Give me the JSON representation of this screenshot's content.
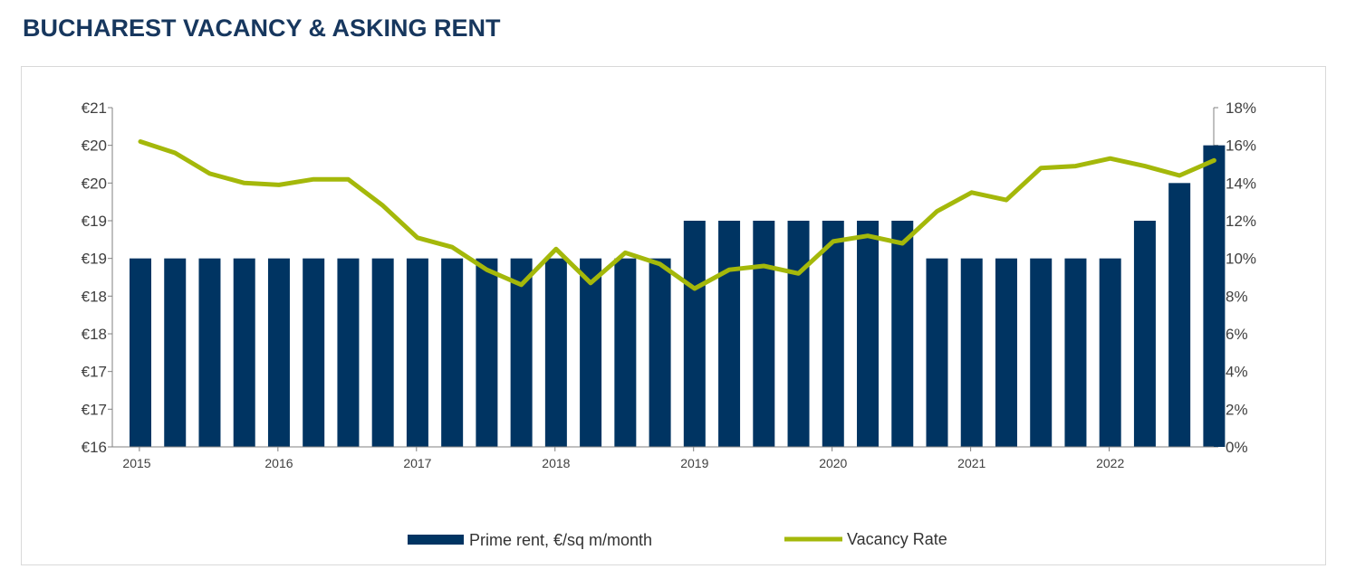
{
  "title": "BUCHAREST VACANCY & ASKING RENT",
  "chart_data": {
    "type": "bar+line",
    "title": "BUCHAREST VACANCY & ASKING RENT",
    "colors": {
      "bars": "#003462",
      "line": "#a4b80a"
    },
    "y_left": {
      "range": [
        16,
        20.5
      ],
      "tick_labels": [
        "€16",
        "€17",
        "€17",
        "€18",
        "€18",
        "€19",
        "€19",
        "€20",
        "€20",
        "€21"
      ]
    },
    "y_right": {
      "range": [
        0,
        18
      ],
      "tick_labels": [
        "0%",
        "2%",
        "4%",
        "6%",
        "8%",
        "10%",
        "12%",
        "14%",
        "16%",
        "18%"
      ]
    },
    "x_tick_labels": [
      "2015",
      "2016",
      "2017",
      "2018",
      "2019",
      "2020",
      "2021",
      "2022"
    ],
    "x_tick_quarter_index": [
      0,
      4,
      8,
      12,
      16,
      20,
      24,
      28
    ],
    "series": [
      {
        "name": "Prime rent, €/sq m/month",
        "type": "bar",
        "axis": "left",
        "values": [
          18.5,
          18.5,
          18.5,
          18.5,
          18.5,
          18.5,
          18.5,
          18.5,
          18.5,
          18.5,
          18.5,
          18.5,
          18.5,
          18.5,
          18.5,
          18.5,
          19.0,
          19.0,
          19.0,
          19.0,
          19.0,
          19.0,
          19.0,
          18.5,
          18.5,
          18.5,
          18.5,
          18.5,
          18.5,
          19.0,
          19.5,
          20.0
        ]
      },
      {
        "name": "Vacancy Rate",
        "type": "line",
        "axis": "right",
        "values": [
          16.2,
          15.6,
          14.5,
          14.0,
          13.9,
          14.2,
          14.2,
          12.8,
          11.1,
          10.6,
          9.4,
          8.6,
          10.5,
          8.7,
          10.3,
          9.7,
          8.4,
          9.4,
          9.6,
          9.2,
          10.9,
          11.2,
          10.8,
          12.5,
          13.5,
          13.1,
          14.8,
          14.9,
          15.3,
          14.9,
          14.4,
          15.2
        ]
      }
    ],
    "legend_position": "bottom",
    "grid": false
  }
}
